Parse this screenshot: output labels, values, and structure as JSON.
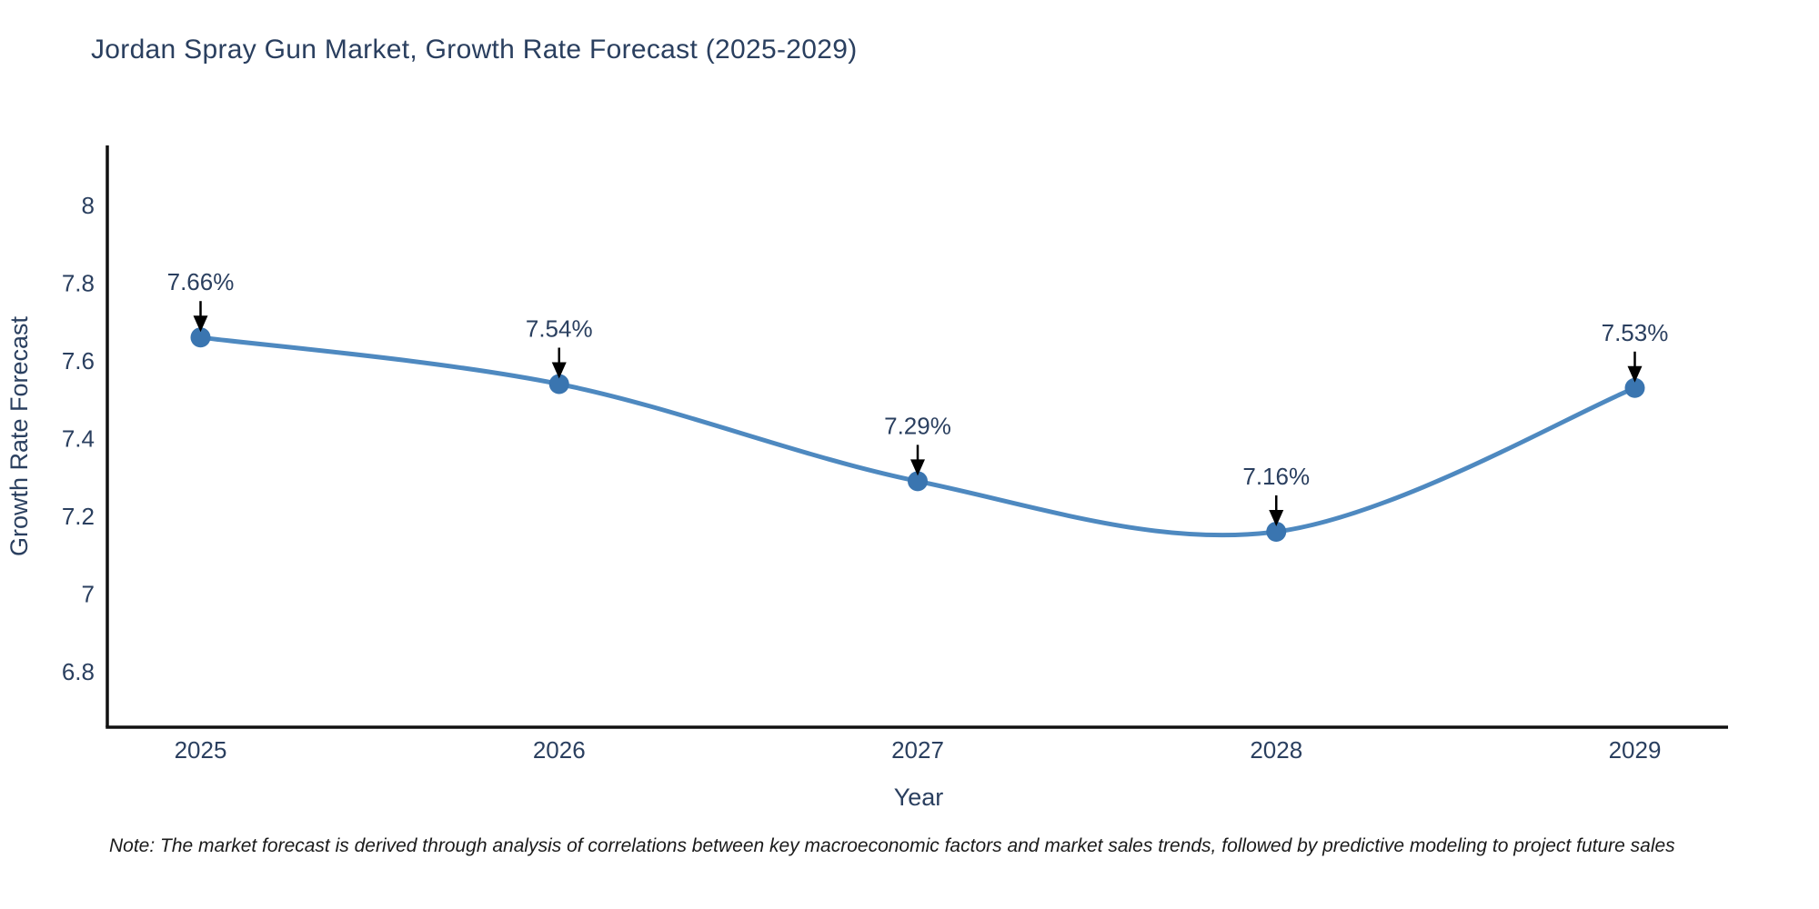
{
  "note": "Note: The market forecast is derived through analysis of correlations between key macroeconomic factors and market sales trends, followed by predictive modeling to project future sales",
  "chart_data": {
    "type": "line",
    "title": "Jordan Spray Gun Market, Growth Rate Forecast (2025-2029)",
    "xlabel": "Year",
    "ylabel": "Growth Rate Forecast",
    "x": [
      2025,
      2026,
      2027,
      2028,
      2029
    ],
    "series": [
      {
        "name": "Growth Rate Forecast",
        "values": [
          7.66,
          7.54,
          7.29,
          7.16,
          7.53
        ]
      }
    ],
    "point_labels": [
      "7.66%",
      "7.54%",
      "7.29%",
      "7.16%",
      "7.53%"
    ],
    "yticks": [
      8,
      7.8,
      7.6,
      7.4,
      7.2,
      7,
      6.8
    ],
    "xlim": [
      2024.74,
      2029.26
    ],
    "ylim": [
      6.657,
      8.154
    ],
    "line_shape": "spline",
    "grid": false,
    "legend_position": "none",
    "colors": {
      "line": "#4483bd",
      "marker": "#3a75b0",
      "axis": "#111111",
      "text": "#2a3f5f",
      "arrow": "#000000"
    }
  }
}
